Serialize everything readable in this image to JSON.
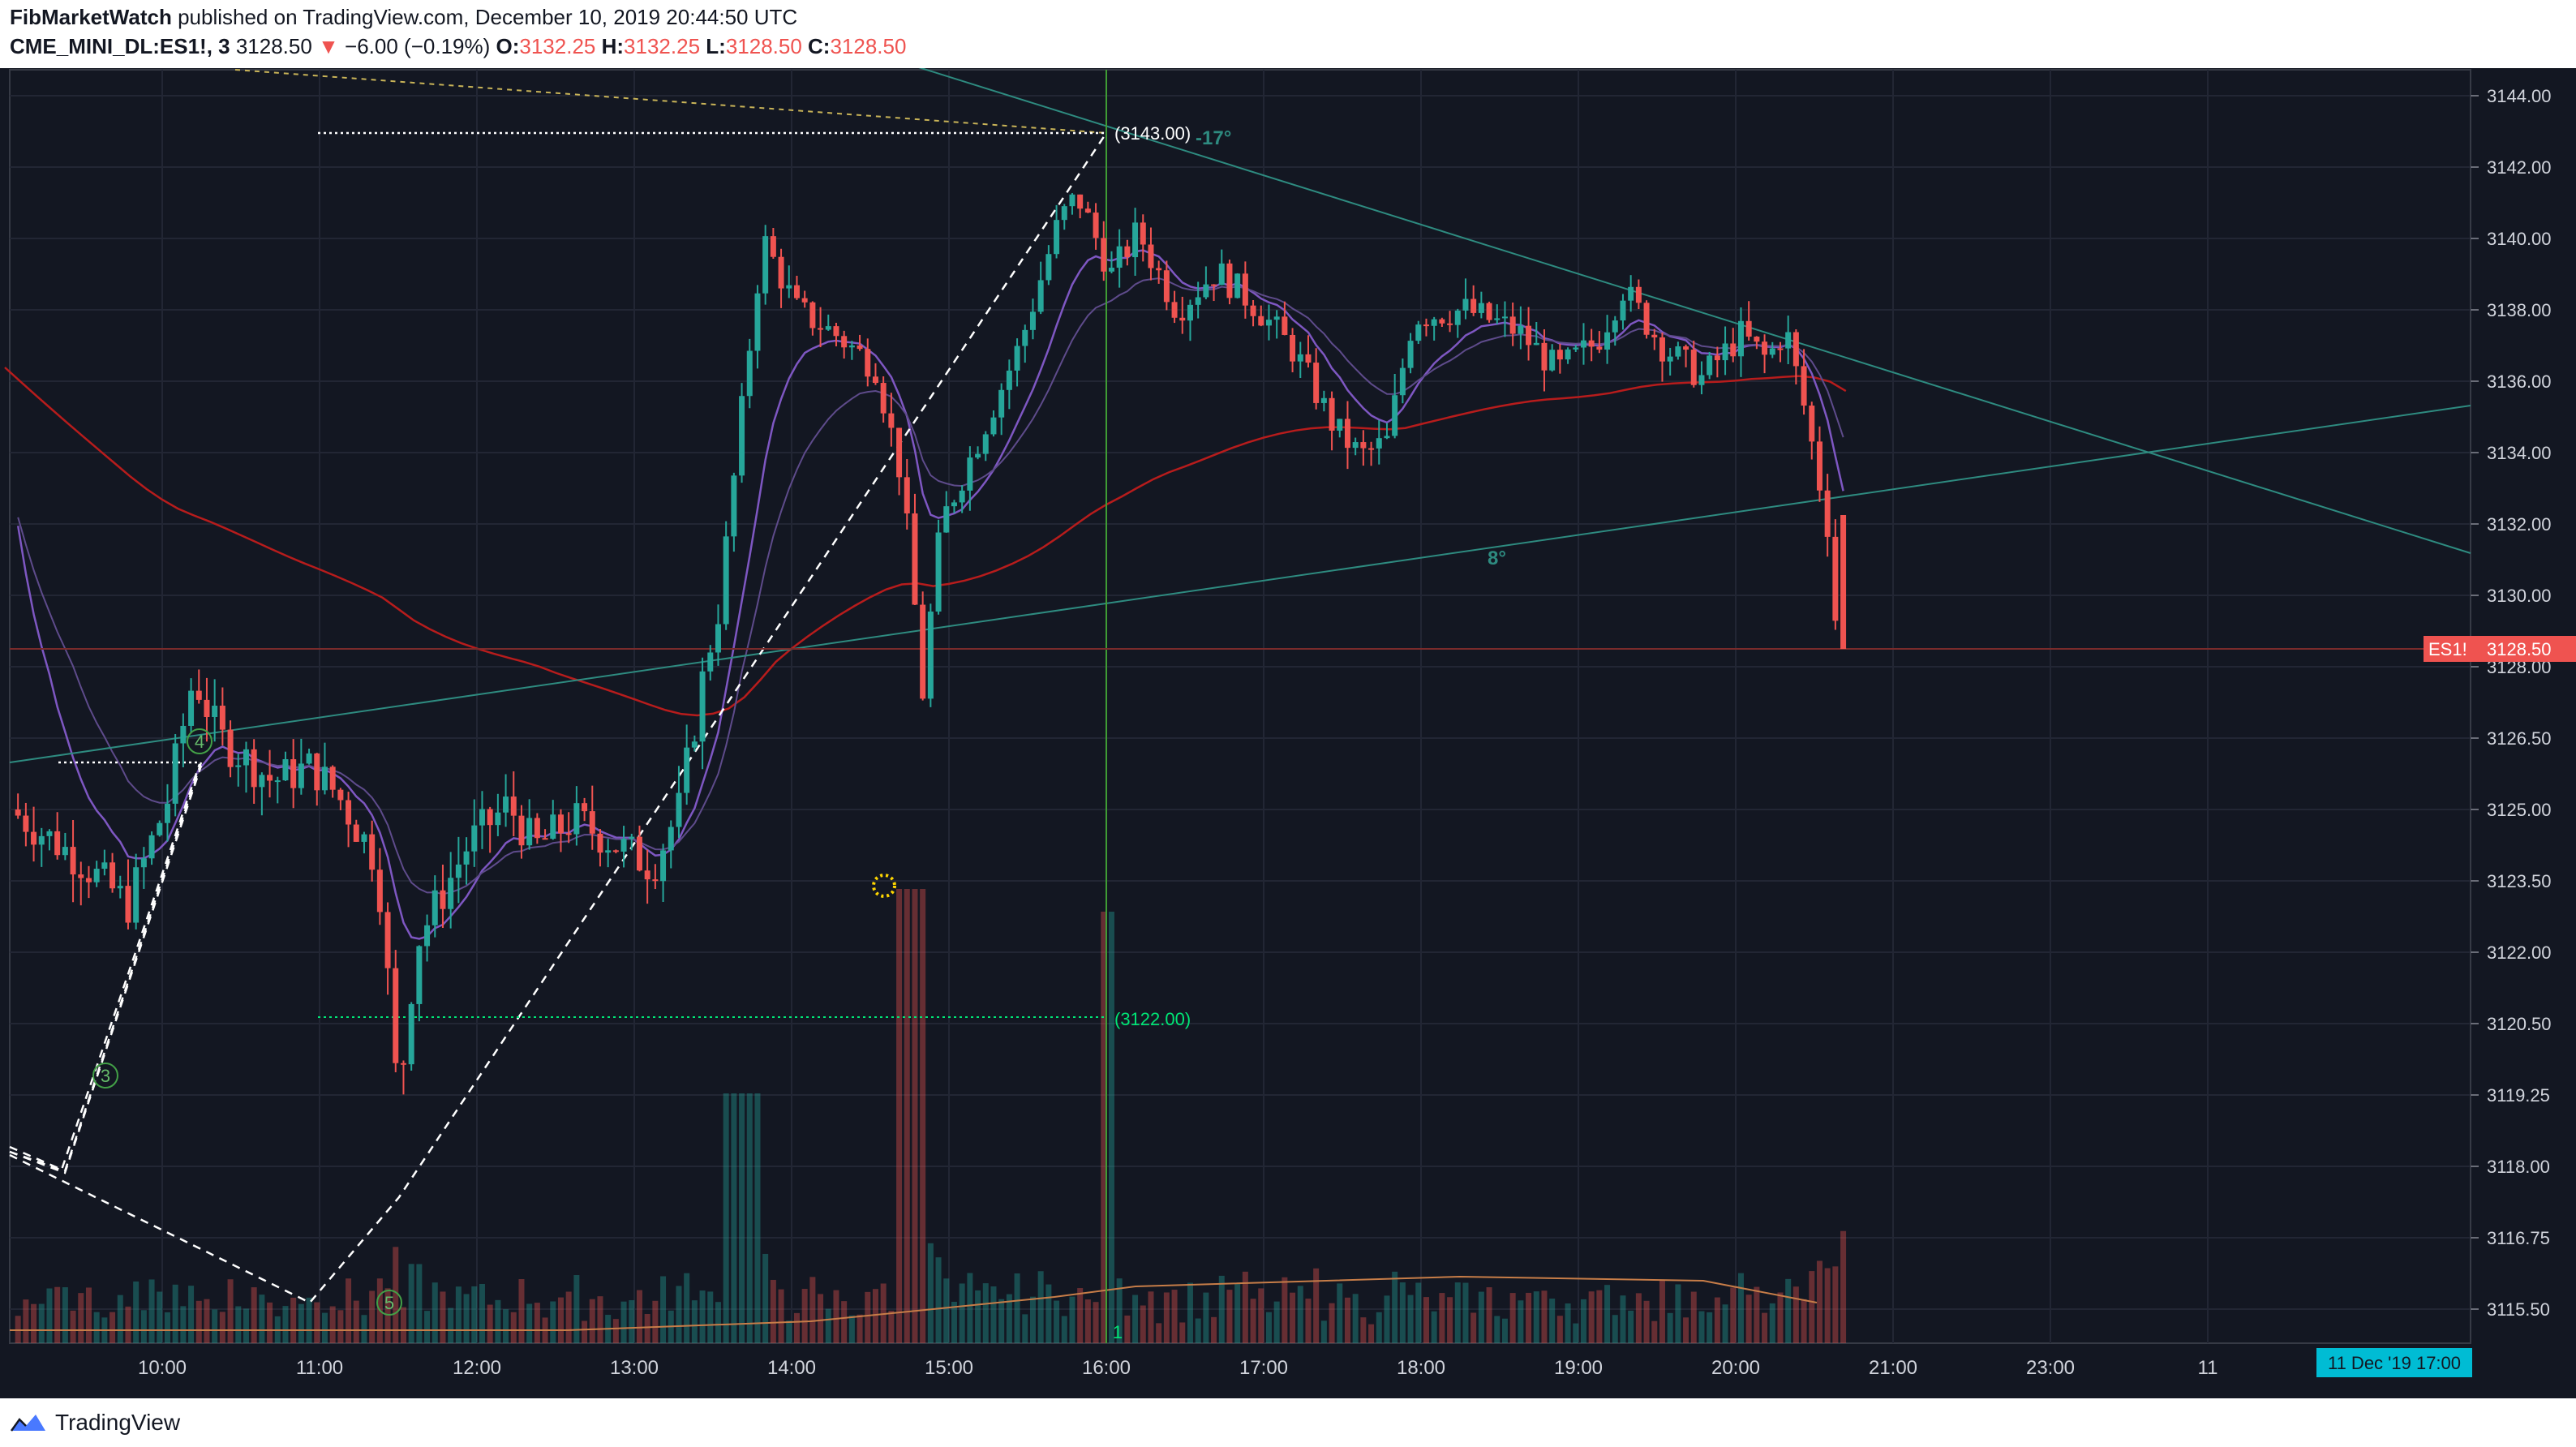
{
  "header": {
    "author": "FibMarketWatch",
    "published_text": "published on TradingView.com, December 10, 2019 20:44:50 UTC",
    "symbol": "CME_MINI_DL:ES1!, 3",
    "last": "3128.50",
    "arrow": "▼",
    "change": "−6.00 (−0.19%)",
    "o_label": "O:",
    "o_val": "3132.25",
    "h_label": "H:",
    "h_val": "3132.25",
    "l_label": "L:",
    "l_val": "3128.50",
    "c_label": "C:",
    "c_val": "3128.50"
  },
  "footer": {
    "logo_text": "TradingView"
  },
  "chart_data": {
    "type": "candlestick",
    "symbol": "ES1!",
    "last_price": 3128.5,
    "last_price_label": "ES1!",
    "y_axis_ticks": [
      "3144.00",
      "3142.00",
      "3140.00",
      "3138.00",
      "3136.00",
      "3134.00",
      "3132.00",
      "3130.00",
      "3128.00",
      "3126.50",
      "3125.00",
      "3123.50",
      "3122.00",
      "3120.50",
      "3119.25",
      "3118.00",
      "3116.75",
      "3115.50"
    ],
    "x_axis_ticks": [
      "10:00",
      "11:00",
      "12:00",
      "13:00",
      "14:00",
      "15:00",
      "16:00",
      "17:00",
      "18:00",
      "19:00",
      "20:00",
      "21:00",
      "23:00",
      "11"
    ],
    "cursor_date_label": "11 Dec '19   17:00",
    "annotations": {
      "high_marker": "(3143.00)",
      "low_marker": "(3122.00)",
      "angle_down": "-17°",
      "angle_up": "8°",
      "wave_labels": [
        "4",
        "3",
        "5"
      ],
      "cycle_label": "1"
    },
    "anchors": [
      {
        "time": "09:05",
        "price": 3125.0
      },
      {
        "time": "09:30",
        "price": 3124.0
      },
      {
        "time": "09:50",
        "price": 3123.0
      },
      {
        "time": "10:05",
        "price": 3125.2
      },
      {
        "time": "10:15",
        "price": 3127.8
      },
      {
        "time": "10:25",
        "price": 3126.5
      },
      {
        "time": "10:45",
        "price": 3125.6
      },
      {
        "time": "11:00",
        "price": 3125.9
      },
      {
        "time": "11:10",
        "price": 3125.3
      },
      {
        "time": "11:25",
        "price": 3123.9
      },
      {
        "time": "11:33",
        "price": 3119.0
      },
      {
        "time": "11:40",
        "price": 3122.2
      },
      {
        "time": "12:00",
        "price": 3124.3
      },
      {
        "time": "12:15",
        "price": 3125.1
      },
      {
        "time": "12:25",
        "price": 3124.2
      },
      {
        "time": "12:40",
        "price": 3124.8
      },
      {
        "time": "12:55",
        "price": 3124.3
      },
      {
        "time": "13:10",
        "price": 3123.8
      },
      {
        "time": "13:20",
        "price": 3125.0
      },
      {
        "time": "13:35",
        "price": 3129.5
      },
      {
        "time": "13:45",
        "price": 3135.8
      },
      {
        "time": "13:52",
        "price": 3140.0
      },
      {
        "time": "14:05",
        "price": 3138.0
      },
      {
        "time": "14:20",
        "price": 3137.3
      },
      {
        "time": "14:35",
        "price": 3136.4
      },
      {
        "time": "14:45",
        "price": 3133.3
      },
      {
        "time": "14:53",
        "price": 3127.5
      },
      {
        "time": "15:00",
        "price": 3132.0
      },
      {
        "time": "15:15",
        "price": 3134.5
      },
      {
        "time": "15:30",
        "price": 3137.0
      },
      {
        "time": "15:45",
        "price": 3140.5
      },
      {
        "time": "15:52",
        "price": 3141.2
      },
      {
        "time": "16:05",
        "price": 3139.0
      },
      {
        "time": "16:15",
        "price": 3140.2
      },
      {
        "time": "16:30",
        "price": 3138.0
      },
      {
        "time": "16:45",
        "price": 3139.1
      },
      {
        "time": "17:00",
        "price": 3138.1
      },
      {
        "time": "17:15",
        "price": 3136.8
      },
      {
        "time": "17:30",
        "price": 3134.7
      },
      {
        "time": "17:40",
        "price": 3133.9
      },
      {
        "time": "17:50",
        "price": 3134.3
      },
      {
        "time": "18:00",
        "price": 3137.8
      },
      {
        "time": "18:20",
        "price": 3138.0
      },
      {
        "time": "18:40",
        "price": 3137.4
      },
      {
        "time": "18:55",
        "price": 3136.3
      },
      {
        "time": "19:10",
        "price": 3137.1
      },
      {
        "time": "19:20",
        "price": 3138.6
      },
      {
        "time": "19:35",
        "price": 3137.0
      },
      {
        "time": "19:50",
        "price": 3136.1
      },
      {
        "time": "20:05",
        "price": 3137.3
      },
      {
        "time": "20:15",
        "price": 3136.6
      },
      {
        "time": "20:22",
        "price": 3137.5
      },
      {
        "time": "20:30",
        "price": 3135.0
      },
      {
        "time": "20:38",
        "price": 3132.0
      },
      {
        "time": "20:42",
        "price": 3128.5
      }
    ]
  },
  "colors": {
    "background": "#131722",
    "up": "#26a69a",
    "down": "#ef5350",
    "ma_red": "#b71c1c",
    "ma_purple": "#7e57c2",
    "trendline": "#2e8b80",
    "marker_green": "#00e676",
    "price_badge": "#ef5350",
    "date_badge": "#00bcd4"
  }
}
